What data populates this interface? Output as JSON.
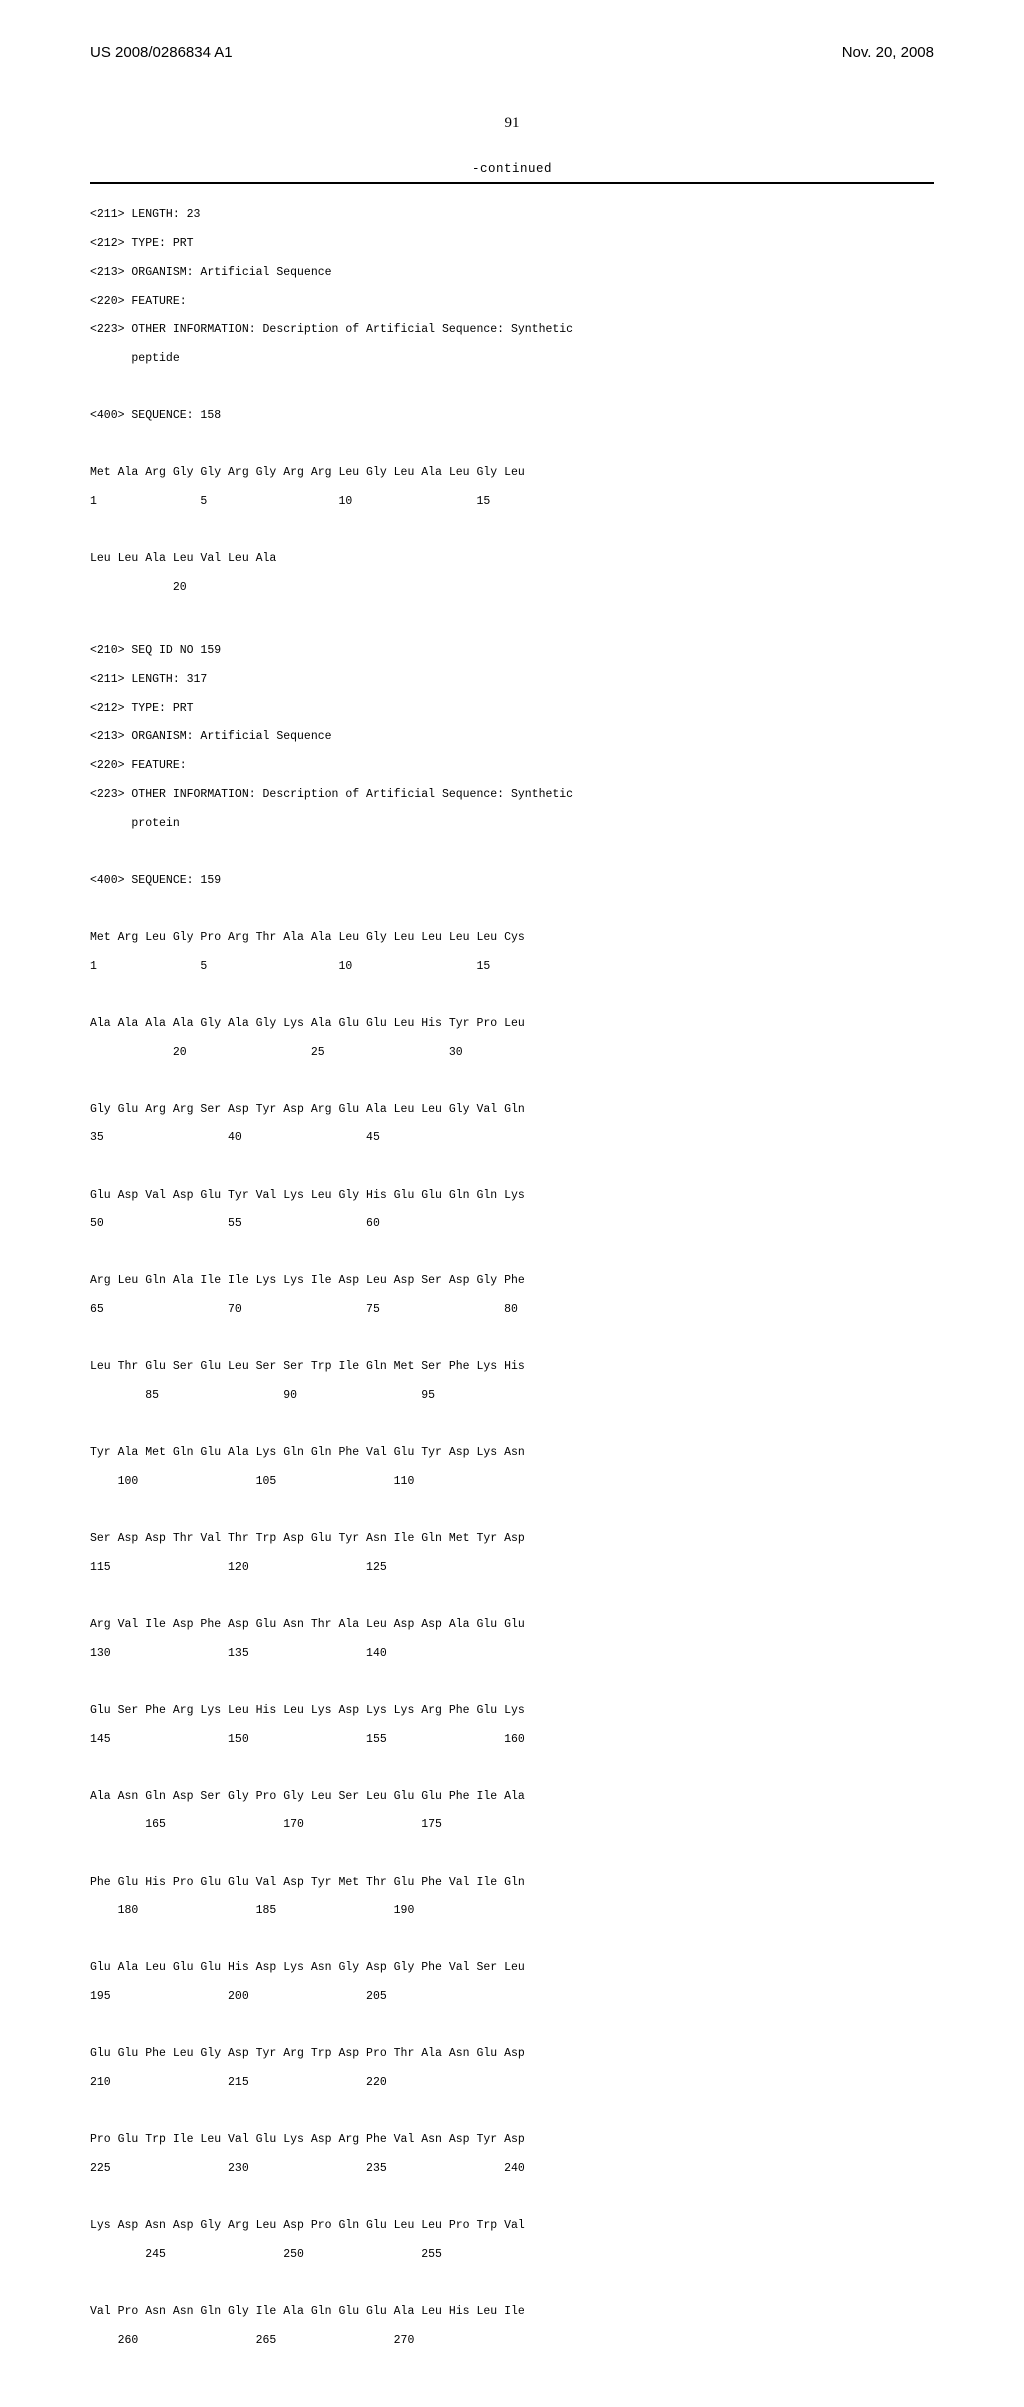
{
  "header": {
    "left": "US 2008/0286834 A1",
    "right": "Nov. 20, 2008"
  },
  "page_number": "91",
  "continued_label": "-continued",
  "seq158": {
    "meta": [
      "<211> LENGTH: 23",
      "<212> TYPE: PRT",
      "<213> ORGANISM: Artificial Sequence",
      "<220> FEATURE:",
      "<223> OTHER INFORMATION: Description of Artificial Sequence: Synthetic",
      "      peptide"
    ],
    "seq_header": "<400> SEQUENCE: 158",
    "lines": [
      {
        "res": "Met Ala Arg Gly Gly Arg Gly Arg Arg Leu Gly Leu Ala Leu Gly Leu",
        "num": "1               5                   10                  15"
      },
      {
        "res": "Leu Leu Ala Leu Val Leu Ala",
        "num": "            20"
      }
    ]
  },
  "seq159": {
    "meta": [
      "<210> SEQ ID NO 159",
      "<211> LENGTH: 317",
      "<212> TYPE: PRT",
      "<213> ORGANISM: Artificial Sequence",
      "<220> FEATURE:",
      "<223> OTHER INFORMATION: Description of Artificial Sequence: Synthetic",
      "      protein"
    ],
    "seq_header": "<400> SEQUENCE: 159",
    "lines": [
      {
        "res": "Met Arg Leu Gly Pro Arg Thr Ala Ala Leu Gly Leu Leu Leu Leu Cys",
        "num": "1               5                   10                  15"
      },
      {
        "res": "Ala Ala Ala Ala Gly Ala Gly Lys Ala Glu Glu Leu His Tyr Pro Leu",
        "num": "            20                  25                  30"
      },
      {
        "res": "Gly Glu Arg Arg Ser Asp Tyr Asp Arg Glu Ala Leu Leu Gly Val Gln",
        "num": "35                  40                  45"
      },
      {
        "res": "Glu Asp Val Asp Glu Tyr Val Lys Leu Gly His Glu Glu Gln Gln Lys",
        "num": "50                  55                  60"
      },
      {
        "res": "Arg Leu Gln Ala Ile Ile Lys Lys Ile Asp Leu Asp Ser Asp Gly Phe",
        "num": "65                  70                  75                  80"
      },
      {
        "res": "Leu Thr Glu Ser Glu Leu Ser Ser Trp Ile Gln Met Ser Phe Lys His",
        "num": "        85                  90                  95"
      },
      {
        "res": "Tyr Ala Met Gln Glu Ala Lys Gln Gln Phe Val Glu Tyr Asp Lys Asn",
        "num": "    100                 105                 110"
      },
      {
        "res": "Ser Asp Asp Thr Val Thr Trp Asp Glu Tyr Asn Ile Gln Met Tyr Asp",
        "num": "115                 120                 125"
      },
      {
        "res": "Arg Val Ile Asp Phe Asp Glu Asn Thr Ala Leu Asp Asp Ala Glu Glu",
        "num": "130                 135                 140"
      },
      {
        "res": "Glu Ser Phe Arg Lys Leu His Leu Lys Asp Lys Lys Arg Phe Glu Lys",
        "num": "145                 150                 155                 160"
      },
      {
        "res": "Ala Asn Gln Asp Ser Gly Pro Gly Leu Ser Leu Glu Glu Phe Ile Ala",
        "num": "        165                 170                 175"
      },
      {
        "res": "Phe Glu His Pro Glu Glu Val Asp Tyr Met Thr Glu Phe Val Ile Gln",
        "num": "    180                 185                 190"
      },
      {
        "res": "Glu Ala Leu Glu Glu His Asp Lys Asn Gly Asp Gly Phe Val Ser Leu",
        "num": "195                 200                 205"
      },
      {
        "res": "Glu Glu Phe Leu Gly Asp Tyr Arg Trp Asp Pro Thr Ala Asn Glu Asp",
        "num": "210                 215                 220"
      },
      {
        "res": "Pro Glu Trp Ile Leu Val Glu Lys Asp Arg Phe Val Asn Asp Tyr Asp",
        "num": "225                 230                 235                 240"
      },
      {
        "res": "Lys Asp Asn Asp Gly Arg Leu Asp Pro Gln Glu Leu Leu Pro Trp Val",
        "num": "        245                 250                 255"
      },
      {
        "res": "Val Pro Asn Asn Gln Gly Ile Ala Gln Glu Glu Ala Leu His Leu Ile",
        "num": "    260                 265                 270"
      }
    ]
  }
}
